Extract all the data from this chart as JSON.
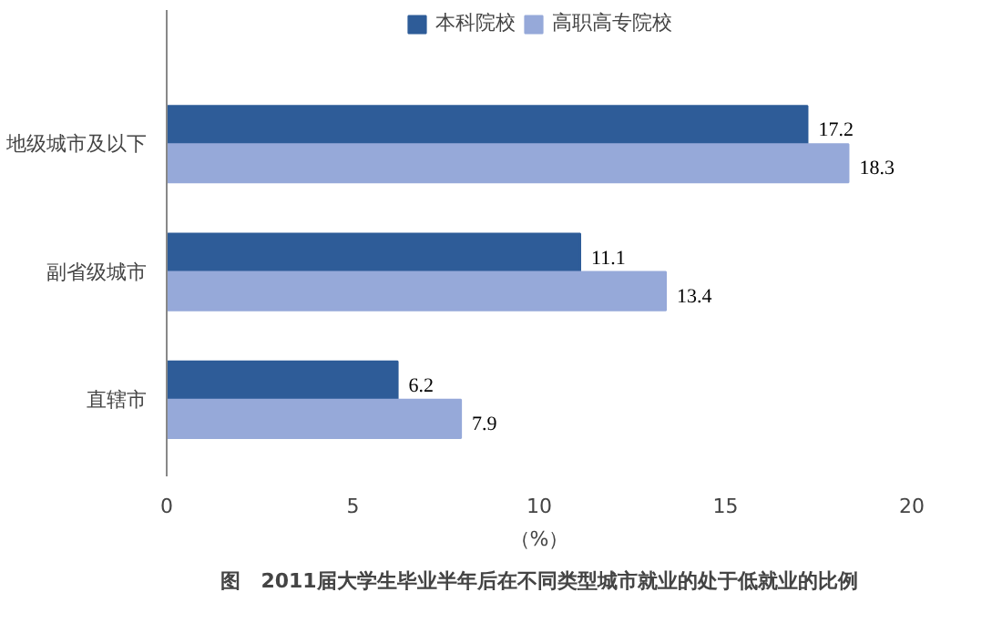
{
  "chart_data": {
    "type": "bar",
    "orientation": "horizontal",
    "title": "图　2011届大学生毕业半年后在不同类型城市就业的处于低就业的比例",
    "xlabel": "（%）",
    "categories": [
      "地级城市及以下",
      "副省级城市",
      "直辖市"
    ],
    "series": [
      {
        "name": "本科院校",
        "color": "#2e5c98",
        "values": [
          17.2,
          11.1,
          6.2
        ]
      },
      {
        "name": "高职高专院校",
        "color": "#96a9d9",
        "values": [
          18.3,
          13.4,
          7.9
        ]
      }
    ],
    "xlim": [
      0,
      20
    ],
    "xticks": [
      0,
      5,
      10,
      15,
      20
    ],
    "data_labels": true,
    "legend": "top",
    "grid": false
  }
}
